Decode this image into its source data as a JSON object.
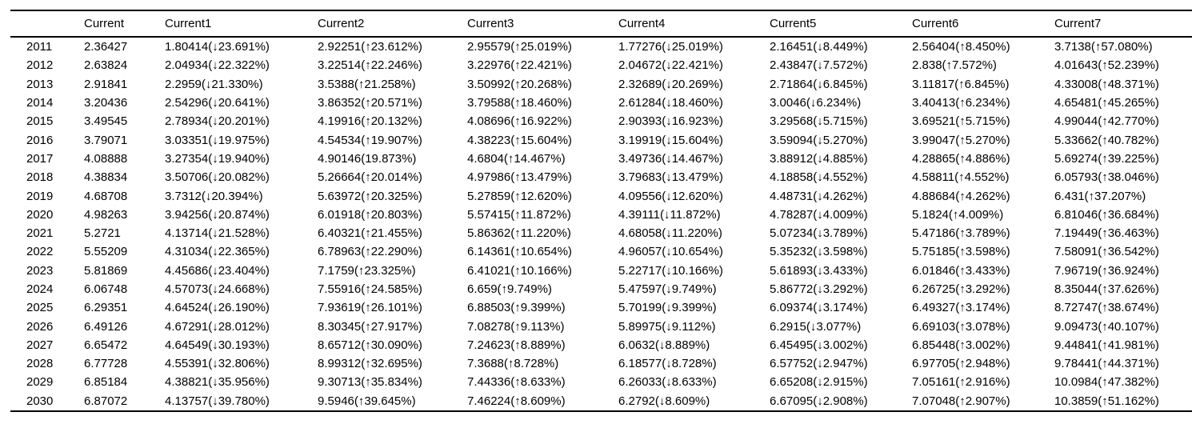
{
  "colors": {
    "background": "#ffffff",
    "text": "#000000",
    "rule": "#000000"
  },
  "chart_data": {
    "type": "table",
    "columns": [
      "",
      "Current",
      "Current1",
      "Current2",
      "Current3",
      "Current4",
      "Current5",
      "Current6",
      "Current7"
    ],
    "rows": [
      {
        "year": "2011",
        "values": [
          "2.36427",
          "1.80414(↓23.691%)",
          "2.92251(↑23.612%)",
          "2.95579(↑25.019%)",
          "1.77276(↓25.019%)",
          "2.16451(↓8.449%)",
          "2.56404(↑8.450%)",
          "3.7138(↑57.080%)"
        ]
      },
      {
        "year": "2012",
        "values": [
          "2.63824",
          "2.04934(↓22.322%)",
          "3.22514(↑22.246%)",
          "3.22976(↑22.421%)",
          "2.04672(↓22.421%)",
          "2.43847(↓7.572%)",
          "2.838(↑7.572%)",
          "4.01643(↑52.239%)"
        ]
      },
      {
        "year": "2013",
        "values": [
          "2.91841",
          "2.2959(↓21.330%)",
          "3.5388(↑21.258%)",
          "3.50992(↑20.268%)",
          "2.32689(↓20.269%)",
          "2.71864(↓6.845%)",
          "3.11817(↑6.845%)",
          "4.33008(↑48.371%)"
        ]
      },
      {
        "year": "2014",
        "values": [
          "3.20436",
          "2.54296(↓20.641%)",
          "3.86352(↑20.571%)",
          "3.79588(↑18.460%)",
          "2.61284(↓18.460%)",
          "3.0046(↓6.234%)",
          "3.40413(↑6.234%)",
          "4.65481(↑45.265%)"
        ]
      },
      {
        "year": "2015",
        "values": [
          "3.49545",
          "2.78934(↓20.201%)",
          "4.19916(↑20.132%)",
          "4.08696(↑16.922%)",
          "2.90393(↓16.923%)",
          "3.29568(↓5.715%)",
          "3.69521(↑5.715%)",
          "4.99044(↑42.770%)"
        ]
      },
      {
        "year": "2016",
        "values": [
          "3.79071",
          "3.03351(↓19.975%)",
          "4.54534(↑19.907%)",
          "4.38223(↑15.604%)",
          "3.19919(↓15.604%)",
          "3.59094(↓5.270%)",
          "3.99047(↑5.270%)",
          "5.33662(↑40.782%)"
        ]
      },
      {
        "year": "2017",
        "values": [
          "4.08888",
          "3.27354(↓19.940%)",
          "4.90146(19.873%)",
          "4.6804(↑14.467%)",
          "3.49736(↓14.467%)",
          "3.88912(↓4.885%)",
          "4.28865(↑4.886%)",
          "5.69274(↑39.225%)"
        ]
      },
      {
        "year": "2018",
        "values": [
          "4.38834",
          "3.50706(↓20.082%)",
          "5.26664(↑20.014%)",
          "4.97986(↑13.479%)",
          "3.79683(↓13.479%)",
          "4.18858(↓4.552%)",
          "4.58811(↑4.552%)",
          "6.05793(↑38.046%)"
        ]
      },
      {
        "year": "2019",
        "values": [
          "4.68708",
          "3.7312(↓20.394%)",
          "5.63972(↑20.325%)",
          "5.27859(↑12.620%)",
          "4.09556(↓12.620%)",
          "4.48731(↓4.262%)",
          "4.88684(↑4.262%)",
          "6.431(↑37.207%)"
        ]
      },
      {
        "year": "2020",
        "values": [
          "4.98263",
          "3.94256(↓20.874%)",
          "6.01918(↑20.803%)",
          "5.57415(↑11.872%)",
          "4.39111(↓11.872%)",
          "4.78287(↓4.009%)",
          "5.1824(↑4.009%)",
          "6.81046(↑36.684%)"
        ]
      },
      {
        "year": "2021",
        "values": [
          "5.2721",
          "4.13714(↓21.528%)",
          "6.40321(↑21.455%)",
          "5.86362(↑11.220%)",
          "4.68058(↓11.220%)",
          "5.07234(↓3.789%)",
          "5.47186(↑3.789%)",
          "7.19449(↑36.463%)"
        ]
      },
      {
        "year": "2022",
        "values": [
          "5.55209",
          "4.31034(↓22.365%)",
          "6.78963(↑22.290%)",
          "6.14361(↑10.654%)",
          "4.96057(↓10.654%)",
          "5.35232(↓3.598%)",
          "5.75185(↑3.598%)",
          "7.58091(↑36.542%)"
        ]
      },
      {
        "year": "2023",
        "values": [
          "5.81869",
          "4.45686(↓23.404%)",
          "7.1759(↑23.325%)",
          "6.41021(↑10.166%)",
          "5.22717(↓10.166%)",
          "5.61893(↓3.433%)",
          "6.01846(↑3.433%)",
          "7.96719(↑36.924%)"
        ]
      },
      {
        "year": "2024",
        "values": [
          "6.06748",
          "4.57073(↓24.668%)",
          "7.55916(↑24.585%)",
          "6.659(↑9.749%)",
          "5.47597(↓9.749%)",
          "5.86772(↓3.292%)",
          "6.26725(↑3.292%)",
          "8.35044(↑37.626%)"
        ]
      },
      {
        "year": "2025",
        "values": [
          "6.29351",
          "4.64524(↓26.190%)",
          "7.93619(↑26.101%)",
          "6.88503(↑9.399%)",
          "5.70199(↓9.399%)",
          "6.09374(↓3.174%)",
          "6.49327(↑3.174%)",
          "8.72747(↑38.674%)"
        ]
      },
      {
        "year": "2026",
        "values": [
          "6.49126",
          "4.67291(↓28.012%)",
          "8.30345(↑27.917%)",
          "7.08278(↑9.113%)",
          "5.89975(↓9.112%)",
          "6.2915(↓3.077%)",
          "6.69103(↑3.078%)",
          "9.09473(↑40.107%)"
        ]
      },
      {
        "year": "2027",
        "values": [
          "6.65472",
          "4.64549(↓30.193%)",
          "8.65712(↑30.090%)",
          "7.24623(↑8.889%)",
          "6.0632(↓8.889%)",
          "6.45495(↓3.002%)",
          "6.85448(↑3.002%)",
          "9.44841(↑41.981%)"
        ]
      },
      {
        "year": "2028",
        "values": [
          "6.77728",
          "4.55391(↓32.806%)",
          "8.99312(↑32.695%)",
          "7.3688(↑8.728%)",
          "6.18577(↓8.728%)",
          "6.57752(↓2.947%)",
          "6.97705(↑2.948%)",
          "9.78441(↑44.371%)"
        ]
      },
      {
        "year": "2029",
        "values": [
          "6.85184",
          "4.38821(↓35.956%)",
          "9.30713(↑35.834%)",
          "7.44336(↑8.633%)",
          "6.26033(↓8.633%)",
          "6.65208(↓2.915%)",
          "7.05161(↑2.916%)",
          "10.0984(↑47.382%)"
        ]
      },
      {
        "year": "2030",
        "values": [
          "6.87072",
          "4.13757(↓39.780%)",
          "9.5946(↑39.645%)",
          "7.46224(↑8.609%)",
          "6.2792(↓8.609%)",
          "6.67095(↓2.908%)",
          "7.07048(↑2.907%)",
          "10.3859(↑51.162%)"
        ]
      }
    ]
  }
}
